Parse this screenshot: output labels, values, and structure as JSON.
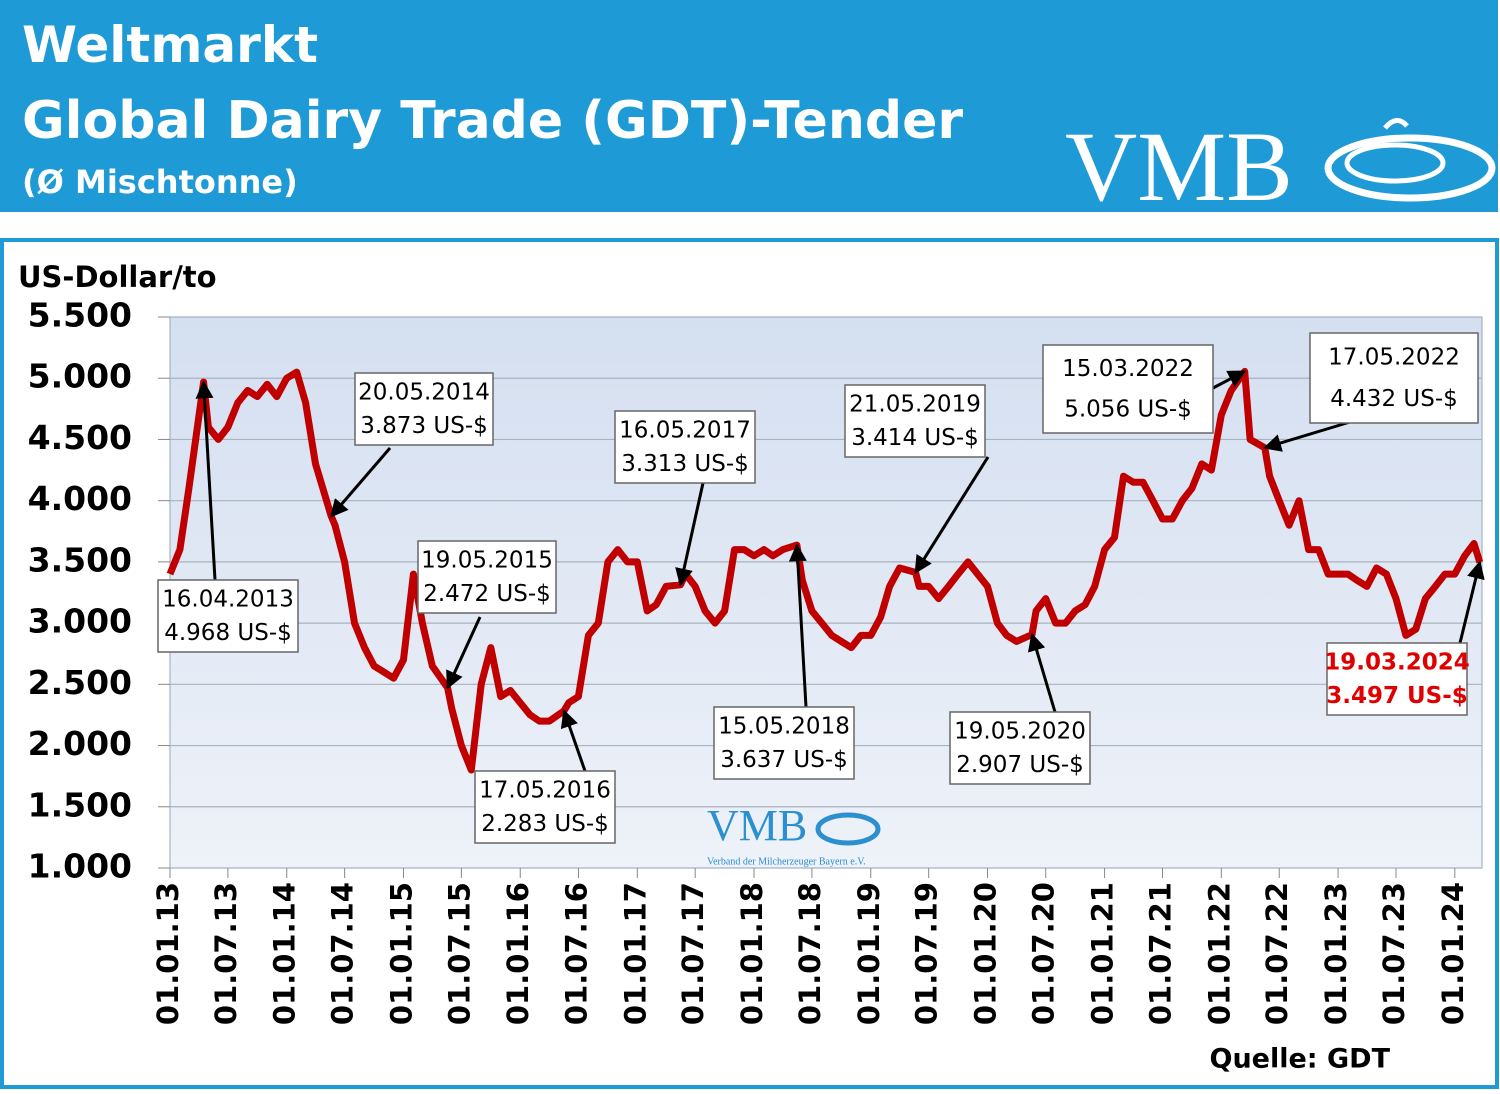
{
  "header": {
    "title": "Weltmarkt",
    "subtitle": "Global Dairy Trade (GDT)-Tender",
    "note": "(Ø Mischtonne)",
    "logo": "VMB"
  },
  "watermark": {
    "logo": "VMB",
    "text": "Verband der Milcherzeuger Bayern e.V."
  },
  "source": "Quelle: GDT",
  "chart_data": {
    "type": "line",
    "y_label": "US-Dollar/to",
    "color": "#c00000",
    "grid": true,
    "ylim": [
      1000,
      5500
    ],
    "yticks": [
      {
        "value": 1000,
        "label": "1.000"
      },
      {
        "value": 1500,
        "label": "1.500"
      },
      {
        "value": 2000,
        "label": "2.000"
      },
      {
        "value": 2500,
        "label": "2.500"
      },
      {
        "value": 3000,
        "label": "3.000"
      },
      {
        "value": 3500,
        "label": "3.500"
      },
      {
        "value": 4000,
        "label": "4.000"
      },
      {
        "value": 4500,
        "label": "4.500"
      },
      {
        "value": 5000,
        "label": "5.000"
      },
      {
        "value": 5500,
        "label": "5.500"
      }
    ],
    "xlim": [
      "2013-01-01",
      "2024-03-26"
    ],
    "xticks": [
      {
        "value": "2013-01-01",
        "label": "01.01.13"
      },
      {
        "value": "2013-07-01",
        "label": "01.07.13"
      },
      {
        "value": "2014-01-01",
        "label": "01.01.14"
      },
      {
        "value": "2014-07-01",
        "label": "01.07.14"
      },
      {
        "value": "2015-01-01",
        "label": "01.01.15"
      },
      {
        "value": "2015-07-01",
        "label": "01.07.15"
      },
      {
        "value": "2016-01-01",
        "label": "01.01.16"
      },
      {
        "value": "2016-07-01",
        "label": "01.07.16"
      },
      {
        "value": "2017-01-01",
        "label": "01.01.17"
      },
      {
        "value": "2017-07-01",
        "label": "01.07.17"
      },
      {
        "value": "2018-01-01",
        "label": "01.01.18"
      },
      {
        "value": "2018-07-01",
        "label": "01.07.18"
      },
      {
        "value": "2019-01-01",
        "label": "01.01.19"
      },
      {
        "value": "2019-07-01",
        "label": "01.07.19"
      },
      {
        "value": "2020-01-01",
        "label": "01.01.20"
      },
      {
        "value": "2020-07-01",
        "label": "01.07.20"
      },
      {
        "value": "2021-01-01",
        "label": "01.01.21"
      },
      {
        "value": "2021-07-01",
        "label": "01.07.21"
      },
      {
        "value": "2022-01-01",
        "label": "01.01.22"
      },
      {
        "value": "2022-07-01",
        "label": "01.07.22"
      },
      {
        "value": "2023-01-01",
        "label": "01.01.23"
      },
      {
        "value": "2023-07-01",
        "label": "01.07.23"
      },
      {
        "value": "2024-01-01",
        "label": "01.01.24"
      }
    ],
    "x": [
      "2013-01-01",
      "2013-02-01",
      "2013-03-01",
      "2013-04-16",
      "2013-05-01",
      "2013-06-01",
      "2013-07-01",
      "2013-08-01",
      "2013-09-01",
      "2013-10-01",
      "2013-11-01",
      "2013-12-01",
      "2014-01-01",
      "2014-02-01",
      "2014-03-01",
      "2014-04-01",
      "2014-05-20",
      "2014-06-01",
      "2014-07-01",
      "2014-08-01",
      "2014-09-01",
      "2014-10-01",
      "2014-11-01",
      "2014-12-01",
      "2015-01-01",
      "2015-02-01",
      "2015-03-01",
      "2015-04-01",
      "2015-05-19",
      "2015-06-01",
      "2015-07-01",
      "2015-08-01",
      "2015-09-01",
      "2015-10-01",
      "2015-11-01",
      "2015-12-01",
      "2016-01-01",
      "2016-02-01",
      "2016-03-01",
      "2016-04-01",
      "2016-05-17",
      "2016-06-01",
      "2016-07-01",
      "2016-08-01",
      "2016-09-01",
      "2016-10-01",
      "2016-11-01",
      "2016-12-01",
      "2017-01-01",
      "2017-02-01",
      "2017-03-01",
      "2017-04-01",
      "2017-05-16",
      "2017-06-01",
      "2017-07-01",
      "2017-08-01",
      "2017-09-01",
      "2017-10-01",
      "2017-11-01",
      "2017-12-01",
      "2018-01-01",
      "2018-02-01",
      "2018-03-01",
      "2018-04-01",
      "2018-05-15",
      "2018-06-01",
      "2018-07-01",
      "2018-08-01",
      "2018-09-01",
      "2018-10-01",
      "2018-11-01",
      "2018-12-01",
      "2019-01-01",
      "2019-02-01",
      "2019-03-01",
      "2019-04-01",
      "2019-05-21",
      "2019-06-01",
      "2019-07-01",
      "2019-08-01",
      "2019-09-01",
      "2019-10-01",
      "2019-11-01",
      "2019-12-01",
      "2020-01-01",
      "2020-02-01",
      "2020-03-01",
      "2020-04-01",
      "2020-05-19",
      "2020-06-01",
      "2020-07-01",
      "2020-08-01",
      "2020-09-01",
      "2020-10-01",
      "2020-11-01",
      "2020-12-01",
      "2021-01-01",
      "2021-02-01",
      "2021-03-01",
      "2021-04-01",
      "2021-05-01",
      "2021-06-01",
      "2021-07-01",
      "2021-08-01",
      "2021-09-01",
      "2021-10-01",
      "2021-11-01",
      "2021-12-01",
      "2022-01-01",
      "2022-02-01",
      "2022-03-15",
      "2022-04-01",
      "2022-05-17",
      "2022-06-01",
      "2022-07-01",
      "2022-08-01",
      "2022-09-01",
      "2022-10-01",
      "2022-11-01",
      "2022-12-01",
      "2023-01-01",
      "2023-02-01",
      "2023-03-01",
      "2023-04-01",
      "2023-05-01",
      "2023-06-01",
      "2023-07-01",
      "2023-08-01",
      "2023-09-01",
      "2023-10-01",
      "2023-11-01",
      "2023-12-01",
      "2024-01-01",
      "2024-02-01",
      "2024-03-01",
      "2024-03-19"
    ],
    "values": [
      3400,
      3600,
      4100,
      4968,
      4600,
      4500,
      4600,
      4800,
      4900,
      4850,
      4950,
      4850,
      5000,
      5050,
      4800,
      4300,
      3873,
      3800,
      3500,
      3000,
      2800,
      2650,
      2600,
      2550,
      2700,
      3400,
      3000,
      2650,
      2472,
      2300,
      2000,
      1800,
      2500,
      2800,
      2400,
      2450,
      2350,
      2250,
      2200,
      2200,
      2283,
      2350,
      2400,
      2900,
      3000,
      3500,
      3600,
      3500,
      3500,
      3100,
      3150,
      3300,
      3313,
      3400,
      3300,
      3100,
      3000,
      3100,
      3600,
      3600,
      3550,
      3600,
      3550,
      3600,
      3637,
      3350,
      3100,
      3000,
      2900,
      2850,
      2800,
      2900,
      2900,
      3050,
      3300,
      3450,
      3414,
      3300,
      3300,
      3200,
      3300,
      3400,
      3500,
      3400,
      3300,
      3000,
      2900,
      2850,
      2907,
      3100,
      3200,
      3000,
      3000,
      3100,
      3150,
      3300,
      3600,
      3700,
      4200,
      4150,
      4150,
      4000,
      3850,
      3850,
      4000,
      4100,
      4300,
      4250,
      4700,
      4900,
      5056,
      4500,
      4432,
      4200,
      4000,
      3800,
      4000,
      3600,
      3600,
      3400,
      3400,
      3400,
      3350,
      3300,
      3450,
      3400,
      3200,
      2900,
      2950,
      3200,
      3300,
      3400,
      3400,
      3550,
      3650,
      3497
    ],
    "annotations": [
      {
        "label": "16.04.2013",
        "value": 4968,
        "value_label": "4.968 US-$",
        "color": "#000000"
      },
      {
        "label": "20.05.2014",
        "value": 3873,
        "value_label": "3.873 US-$",
        "color": "#000000"
      },
      {
        "label": "19.05.2015",
        "value": 2472,
        "value_label": "2.472 US-$",
        "color": "#000000"
      },
      {
        "label": "17.05.2016",
        "value": 2283,
        "value_label": "2.283 US-$",
        "color": "#000000"
      },
      {
        "label": "16.05.2017",
        "value": 3313,
        "value_label": "3.313 US-$",
        "color": "#000000"
      },
      {
        "label": "15.05.2018",
        "value": 3637,
        "value_label": "3.637 US-$",
        "color": "#000000"
      },
      {
        "label": "21.05.2019",
        "value": 3414,
        "value_label": "3.414 US-$",
        "color": "#000000"
      },
      {
        "label": "19.05.2020",
        "value": 2907,
        "value_label": "2.907 US-$",
        "color": "#000000"
      },
      {
        "label": "15.03.2022",
        "value": 5056,
        "value_label": "5.056 US-$",
        "color": "#000000"
      },
      {
        "label": "17.05.2022",
        "value": 4432,
        "value_label": "4.432 US-$",
        "color": "#000000"
      },
      {
        "label": "19.03.2024",
        "value": 3497,
        "value_label": "3.497 US-$",
        "color": "#e00000"
      }
    ]
  }
}
